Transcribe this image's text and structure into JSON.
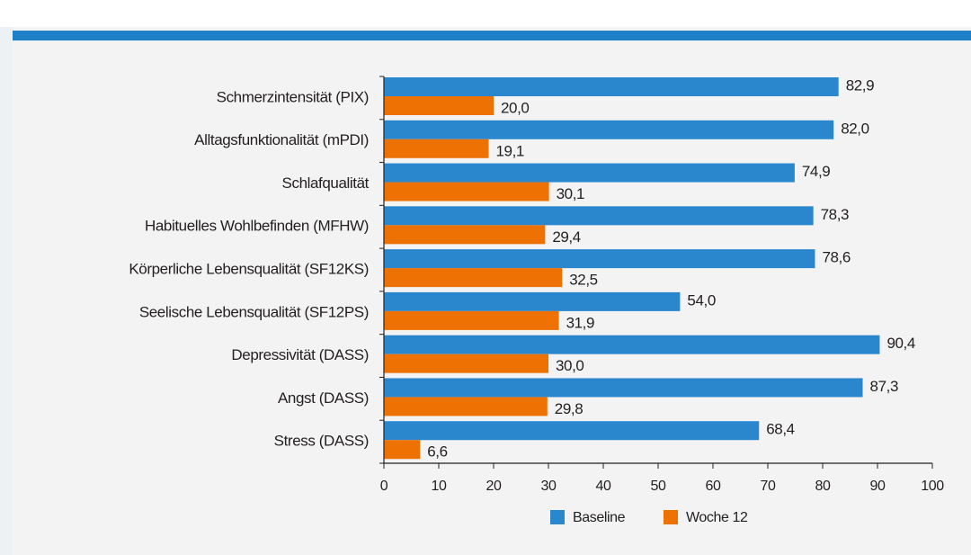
{
  "chart_data": {
    "type": "bar",
    "orientation": "horizontal",
    "categories": [
      "Schmerzintensität (PIX)",
      "Alltagsfunktionalität (mPDI)",
      "Schlafqualität",
      "Habituelles Wohlbefinden (MFHW)",
      "Körperliche Lebensqualität (SF12KS)",
      "Seelische Lebensqualität (SF12PS)",
      "Depressivität (DASS)",
      "Angst (DASS)",
      "Stress (DASS)"
    ],
    "series": [
      {
        "name": "Baseline",
        "color": "#2a86cd",
        "values": [
          82.9,
          82.0,
          74.9,
          78.3,
          78.6,
          54.0,
          90.4,
          87.3,
          68.4
        ],
        "value_labels": [
          "82,9",
          "82,0",
          "74,9",
          "78,3",
          "78,6",
          "54,0",
          "90,4",
          "87,3",
          "68,4"
        ]
      },
      {
        "name": "Woche 12",
        "color": "#ee7203",
        "values": [
          20.0,
          19.1,
          30.1,
          29.4,
          32.5,
          31.9,
          30.0,
          29.8,
          6.6
        ],
        "value_labels": [
          "20,0",
          "19,1",
          "30,1",
          "29,4",
          "32,5",
          "31,9",
          "30,0",
          "29,8",
          "6,6"
        ]
      }
    ],
    "xlim": [
      0,
      100
    ],
    "xticks": [
      0,
      10,
      20,
      30,
      40,
      50,
      60,
      70,
      80,
      90,
      100
    ],
    "legend": "bottom"
  }
}
